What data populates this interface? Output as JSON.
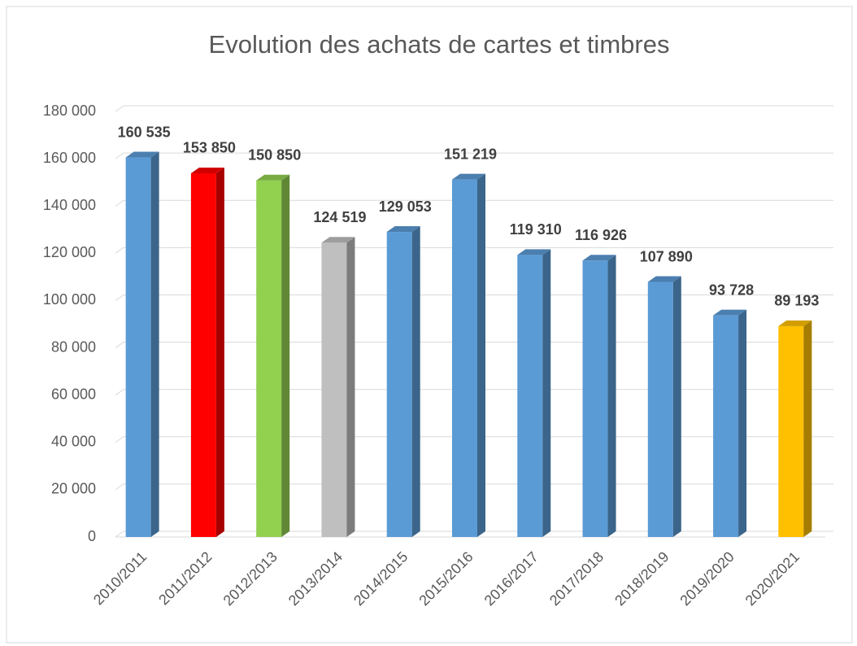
{
  "chart_data": {
    "type": "bar3d",
    "title": "Evolution des achats de cartes et timbres",
    "categories": [
      "2010/2011",
      "2011/2012",
      "2012/2013",
      "2013/2014",
      "2014/2015",
      "2015/2016",
      "2016/2017",
      "2017/2018",
      "2018/2019",
      "2019/2020",
      "2020/2021"
    ],
    "values": [
      160535,
      153850,
      150850,
      124519,
      129053,
      151219,
      119310,
      116926,
      107890,
      93728,
      89193
    ],
    "value_labels": [
      "160 535",
      "153 850",
      "150 850",
      "124 519",
      "129 053",
      "151 219",
      "119 310",
      "116 926",
      "107 890",
      "93 728",
      "89 193"
    ],
    "colors": [
      "#5b9bd5",
      "#ff0000",
      "#92d050",
      "#bfbfbf",
      "#5b9bd5",
      "#5b9bd5",
      "#5b9bd5",
      "#5b9bd5",
      "#5b9bd5",
      "#5b9bd5",
      "#ffc000"
    ],
    "ylim": [
      0,
      180000
    ],
    "yticks": [
      0,
      {
        "value": 20000,
        "label": "20 000"
      },
      {
        "value": 40000,
        "label": "40 000"
      },
      {
        "value": 60000,
        "label": "60 000"
      },
      {
        "value": 80000,
        "label": "80 000"
      },
      {
        "value": 100000,
        "label": "100 000"
      },
      {
        "value": 120000,
        "label": "120 000"
      },
      {
        "value": 140000,
        "label": "140 000"
      },
      {
        "value": 160000,
        "label": "160 000"
      },
      {
        "value": 180000,
        "label": "180 000"
      }
    ],
    "grid": true
  }
}
